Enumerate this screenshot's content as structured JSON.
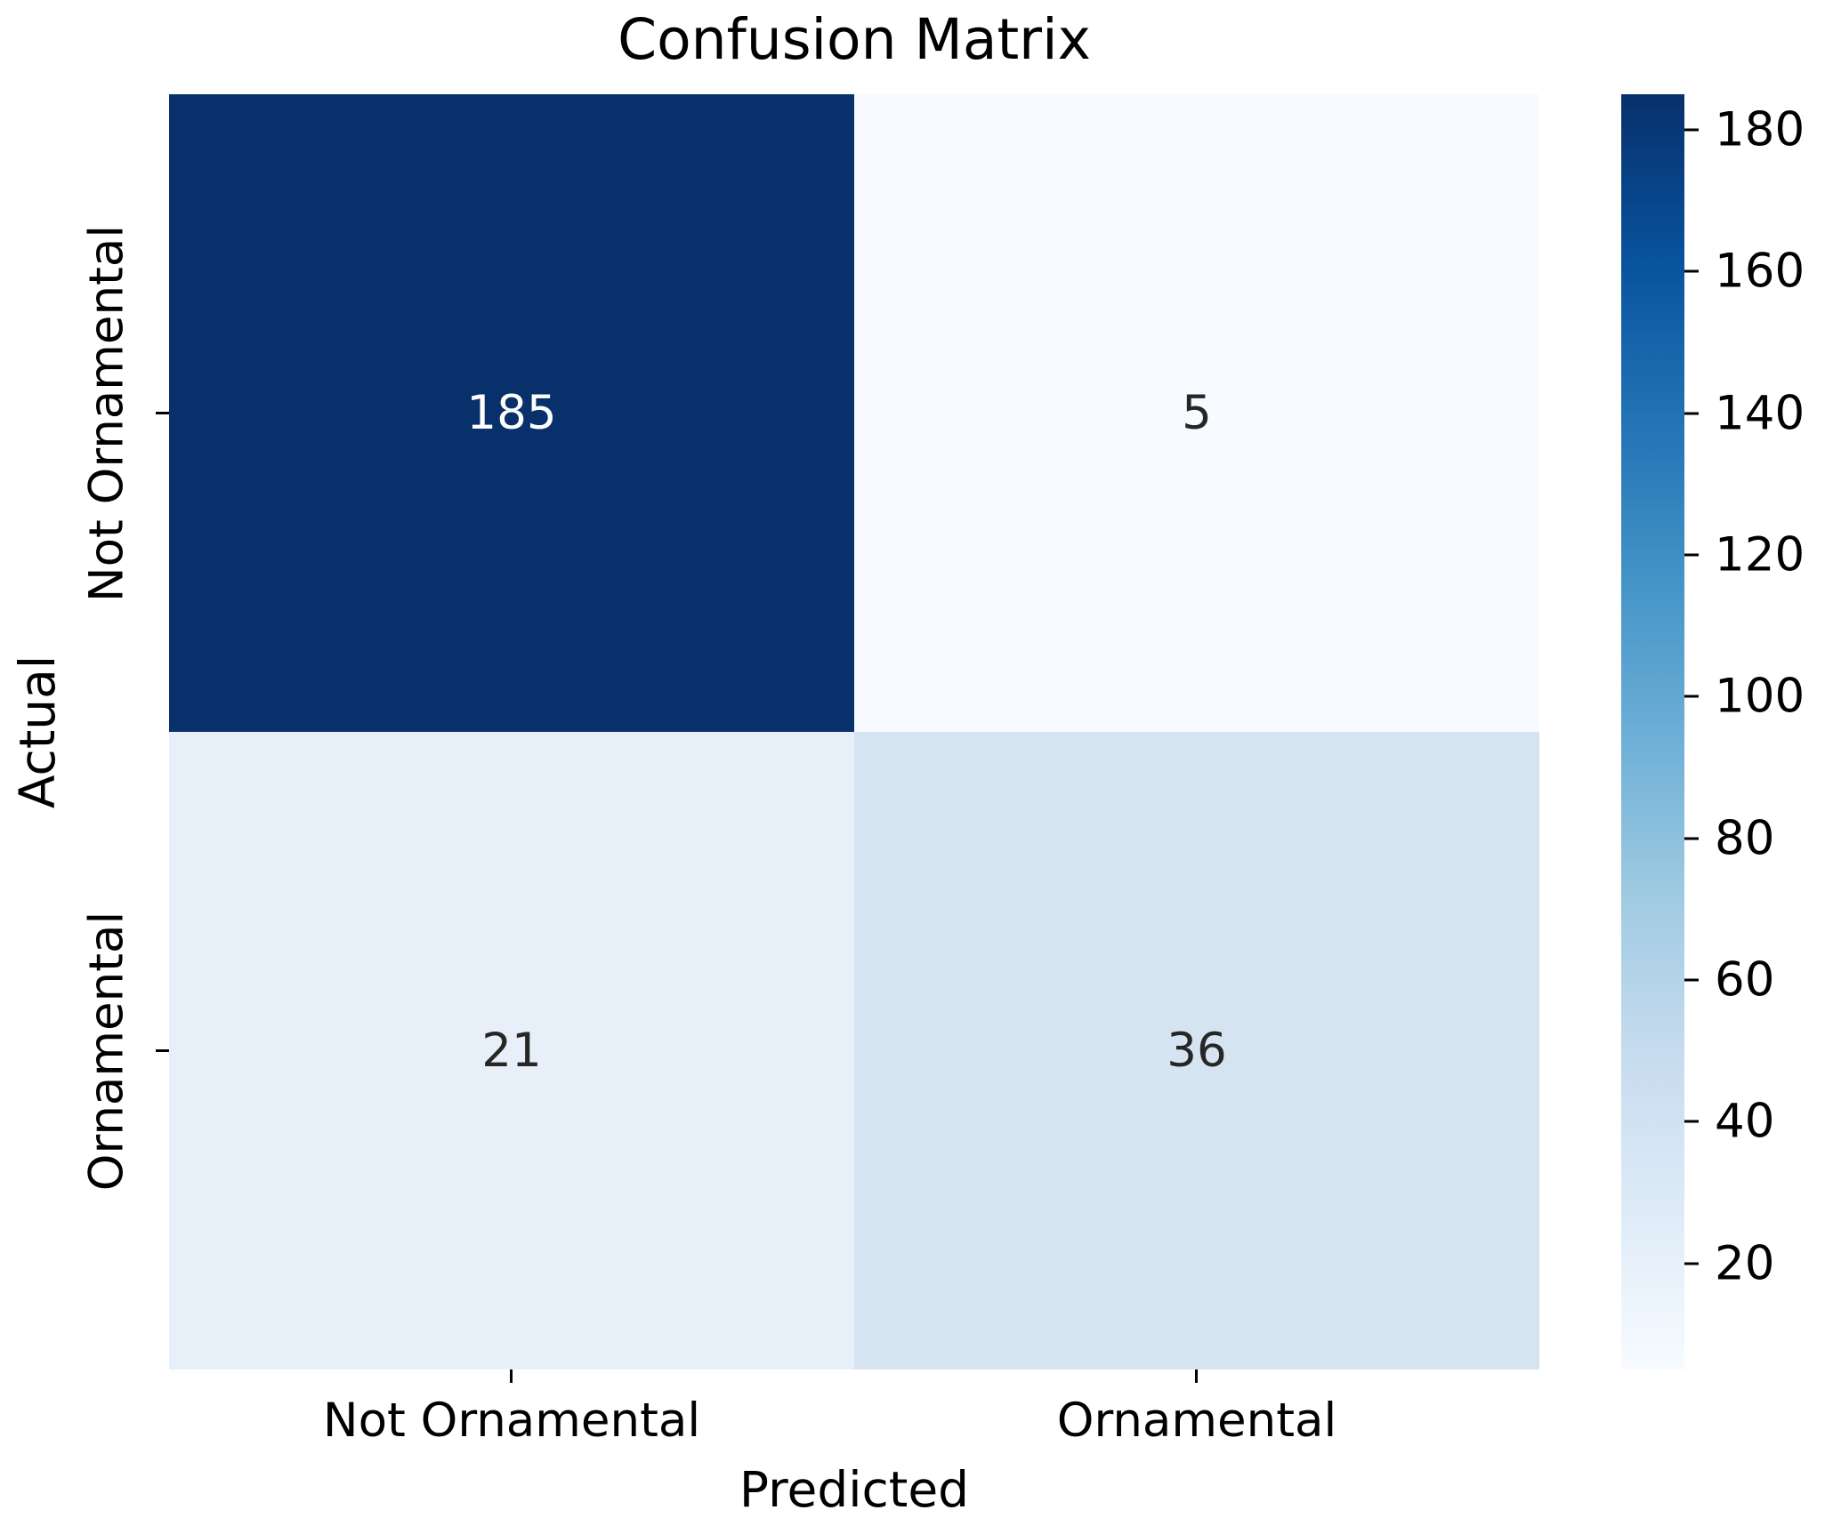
{
  "title": "Confusion Matrix",
  "chart_data": {
    "type": "heatmap",
    "title": "Confusion Matrix",
    "xlabel": "Predicted",
    "ylabel": "Actual",
    "x_categories": [
      "Not Ornamental",
      "Ornamental"
    ],
    "y_categories": [
      "Not Ornamental",
      "Ornamental"
    ],
    "values": [
      [
        185,
        5
      ],
      [
        21,
        36
      ]
    ],
    "vmin": 5,
    "vmax": 185,
    "colormap": "Blues",
    "colormap_stops": [
      "#f7fbff",
      "#deebf7",
      "#c6dbef",
      "#9ecae1",
      "#6baed6",
      "#4292c6",
      "#2171b5",
      "#08519c",
      "#08306b"
    ],
    "cell_colors": [
      [
        "#08306b",
        "#f7fafe"
      ],
      [
        "#e7eff8",
        "#d6e4f2"
      ]
    ],
    "cell_text_colors": [
      [
        "#ffffff",
        "#262626"
      ],
      [
        "#262626",
        "#262626"
      ]
    ],
    "colorbar_ticks": [
      20,
      40,
      60,
      80,
      100,
      120,
      140,
      160,
      180
    ],
    "colorbar_position": "right",
    "grid": false,
    "annotated": true
  }
}
